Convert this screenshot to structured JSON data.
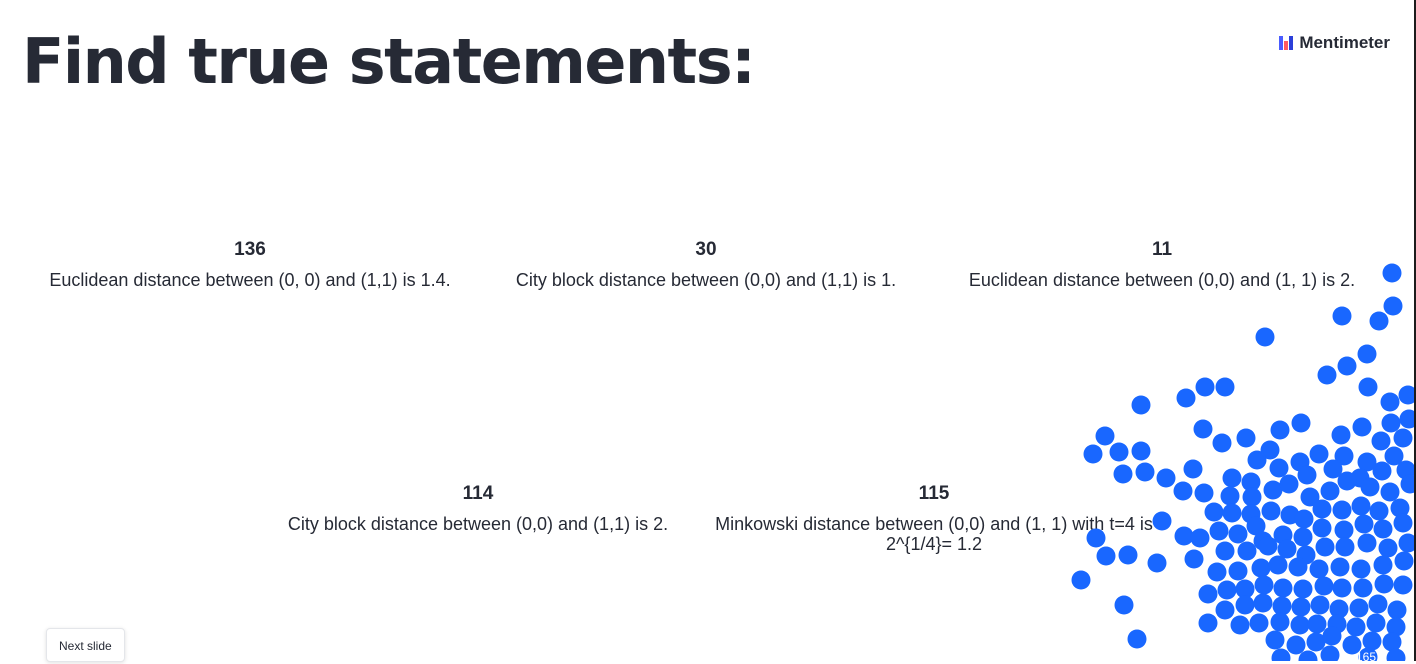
{
  "slide": {
    "title": "Find true statements:"
  },
  "brand": {
    "logo_text": "Mentimeter",
    "logo_colors": [
      "#ff5a5f",
      "#4a5cff",
      "#2b3fd9"
    ]
  },
  "results": [
    {
      "count": "136",
      "label": "Euclidean distance between (0, 0) and (1,1) is 1.4."
    },
    {
      "count": "30",
      "label": "City block distance between (0,0) and (1,1) is 1."
    },
    {
      "count": "11",
      "label": "Euclidean distance between (0,0) and (1, 1) is 2."
    },
    {
      "count": "114",
      "label": "City block distance between (0,0) and (1,1) is 2."
    },
    {
      "count": "115",
      "label": "Minkowski distance between (0,0) and (1, 1) with t=4 is 2^{1/4}= 1.2"
    }
  ],
  "controls": {
    "next_slide_label": "Next slide"
  },
  "audience": {
    "participant_count": "165",
    "dot_color": "#1967ff"
  }
}
